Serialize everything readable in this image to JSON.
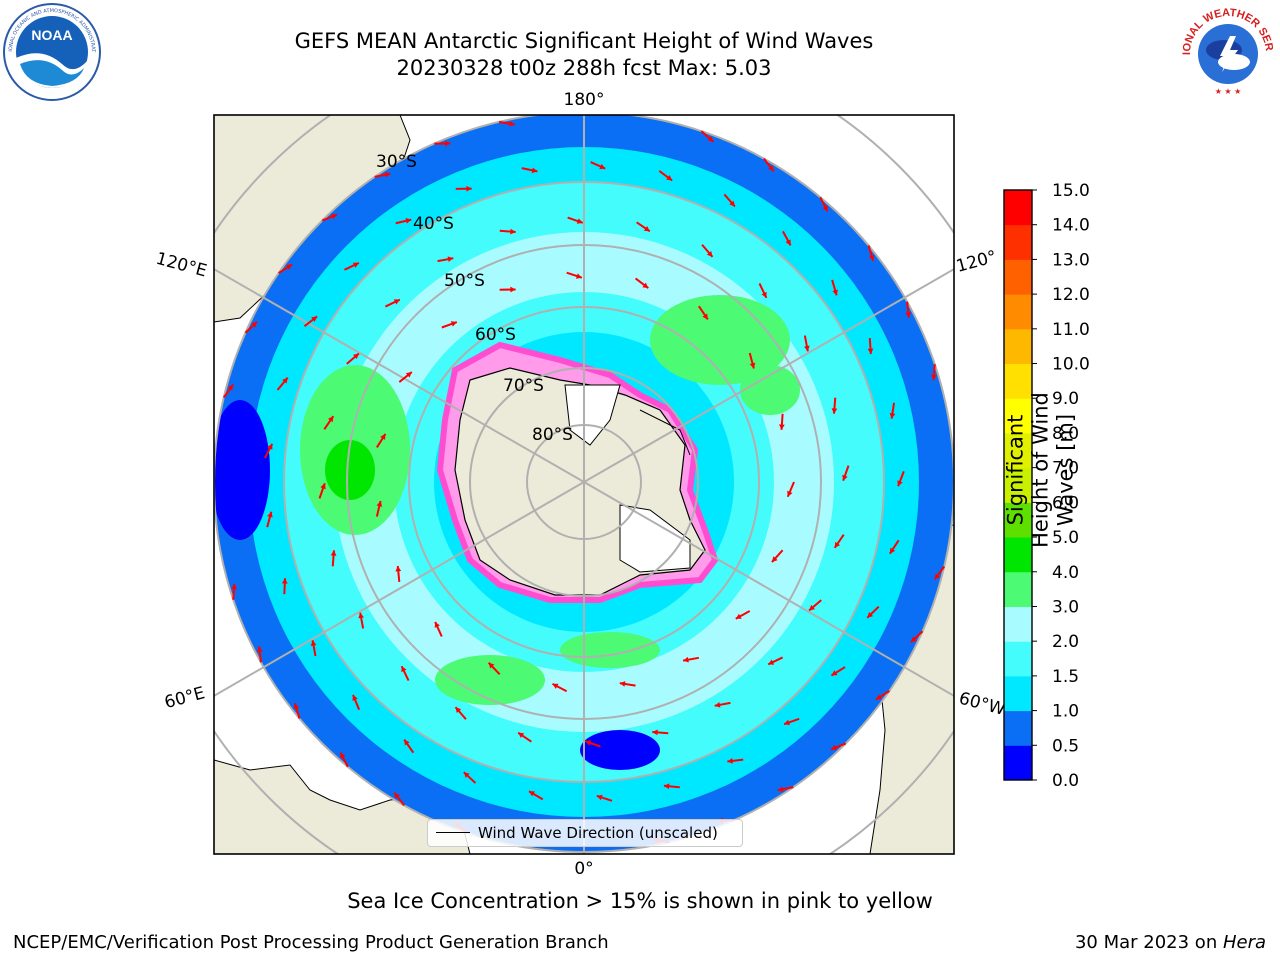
{
  "title": {
    "line1": "GEFS MEAN Antarctic Significant Height of Wind Waves",
    "line2": "20230328 t00z 288h fcst   Max: 5.03"
  },
  "logos": {
    "left": "NOAA",
    "right": "NATIONAL WEATHER SERVICE"
  },
  "map": {
    "projection": "south-polar-stereographic",
    "longitude_labels": {
      "top": "180°",
      "bottom": "0°",
      "left_upper": "120°E",
      "left_lower": "60°E",
      "right_upper": "120°",
      "right_lower": "60°W"
    },
    "latitude_labels": [
      "30°S",
      "40°S",
      "50°S",
      "60°S",
      "70°S",
      "80°S"
    ],
    "legend": "Wind Wave Direction (unscaled)",
    "colors": {
      "land": "#ecebd9",
      "ice_sheet": "#ffffff",
      "ice_edge": "#ff4dd2",
      "arrows": "#ff0000",
      "grid": "#b0b0b0"
    }
  },
  "colorbar": {
    "label": "Significant Height of Wind Waves [m]",
    "ticks": [
      "0.0",
      "0.5",
      "1.0",
      "1.5",
      "2.0",
      "3.0",
      "4.0",
      "5.0",
      "6.0",
      "7.0",
      "8.0",
      "9.0",
      "10.0",
      "11.0",
      "12.0",
      "13.0",
      "14.0",
      "15.0"
    ],
    "colors": [
      "#0000ff",
      "#0a6ff4",
      "#00e8ff",
      "#44fcfc",
      "#a8fcff",
      "#4cfa74",
      "#00e600",
      "#5de000",
      "#c8f000",
      "#e0f000",
      "#ffff00",
      "#ffe000",
      "#ffb800",
      "#ff8c00",
      "#ff6000",
      "#ff3000",
      "#ff0000"
    ]
  },
  "note": "Sea Ice Concentration > 15% is shown in pink to yellow",
  "footer": {
    "left": "NCEP/EMC/Verification Post Processing Product Generation Branch",
    "right_date": "30 Mar 2023 on ",
    "right_machine": "Hera"
  }
}
